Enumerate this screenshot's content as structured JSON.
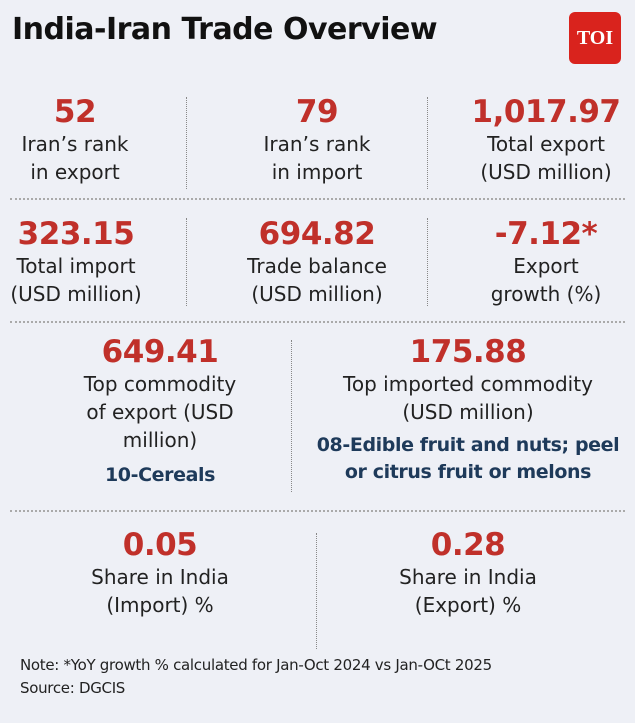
{
  "header": {
    "title": "India-Iran Trade Overview",
    "logo_text": "TOI",
    "logo_color": "#d9231d"
  },
  "colors": {
    "value": "#c0302a",
    "commodity": "#1e3a5a",
    "background": "#eef0f6"
  },
  "stats": [
    {
      "value": "52",
      "label1": "Iran’s rank",
      "label2": "in export"
    },
    {
      "value": "79",
      "label1": "Iran’s rank",
      "label2": "in import"
    },
    {
      "value": "1,017.97",
      "label1": "Total export",
      "label2": "(USD million)"
    },
    {
      "value": "323.15",
      "label1": "Total import",
      "label2": "(USD million)"
    },
    {
      "value": "694.82",
      "label1": "Trade balance",
      "label2": "(USD million)"
    },
    {
      "value": "-7.12*",
      "label1": "Export",
      "label2": "growth (%)"
    }
  ],
  "commodities": [
    {
      "value": "649.41",
      "label1": "Top commodity",
      "label2": "of export (USD",
      "label3": "million)",
      "commodity1": "10-Cereals"
    },
    {
      "value": "175.88",
      "label1": "Top imported commodity",
      "label2": "(USD million)",
      "commodity1": "08-Edible fruit and nuts; peel",
      "commodity2": "or citrus fruit or melons"
    }
  ],
  "shares": [
    {
      "value": "0.05",
      "label1": "Share in India",
      "label2": "(Import) %"
    },
    {
      "value": "0.28",
      "label1": "Share in India",
      "label2": "(Export) %"
    }
  ],
  "footer": {
    "note": "Note: *YoY growth % calculated for Jan-Oct 2024 vs Jan-OCt 2025",
    "source": "Source: DGCIS"
  }
}
